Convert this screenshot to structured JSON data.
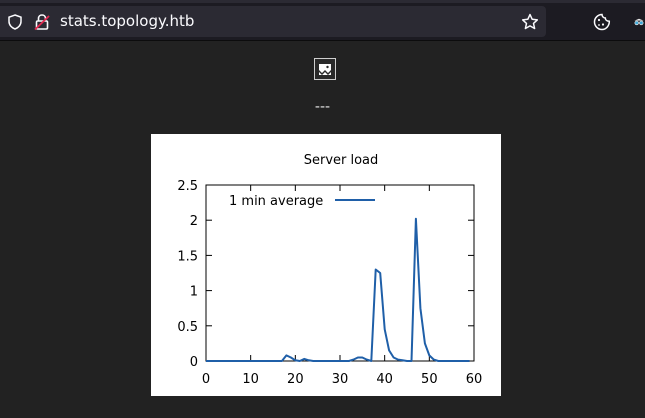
{
  "browser": {
    "url": "stats.topology.htb",
    "icons": {
      "shield": "shield-icon",
      "lock": "lock-insecure-icon",
      "bookmark": "star-icon",
      "extension": "cookie-icon",
      "account": "incognito-glasses-icon"
    }
  },
  "page": {
    "separator": "---",
    "broken_image_icon": "broken-image-icon"
  },
  "colors": {
    "series_line": "#1f5fa8",
    "page_background": "#222222",
    "toolbar_background": "#1c1b22",
    "urlbar_background": "#2b2a33"
  },
  "chart_data": {
    "type": "line",
    "title": "Server load",
    "xlabel": "",
    "ylabel": "",
    "xlim": [
      0,
      60
    ],
    "ylim": [
      0,
      2.5
    ],
    "x_ticks": [
      "0",
      "10",
      "20",
      "30",
      "40",
      "50",
      "60"
    ],
    "y_ticks": [
      "0",
      "0.5",
      "1",
      "1.5",
      "2",
      "2.5"
    ],
    "x_tick_values": [
      0,
      10,
      20,
      30,
      40,
      50,
      60
    ],
    "y_tick_values": [
      0,
      0.5,
      1,
      1.5,
      2,
      2.5
    ],
    "grid": false,
    "legend_position": "top-left",
    "series": [
      {
        "name": "1 min average",
        "x": [
          0,
          2,
          4,
          6,
          8,
          10,
          12,
          14,
          16,
          17,
          18,
          19,
          20,
          21,
          22,
          23,
          24,
          26,
          28,
          30,
          32,
          33,
          34,
          35,
          36,
          37,
          38,
          39,
          40,
          41,
          42,
          43,
          44,
          45,
          46,
          47,
          48,
          49,
          50,
          51,
          52,
          54,
          56,
          58,
          59
        ],
        "y": [
          0,
          0,
          0,
          0,
          0,
          0,
          0,
          0,
          0,
          0,
          0.08,
          0.05,
          0.01,
          0,
          0.03,
          0.01,
          0,
          0,
          0,
          0,
          0,
          0.02,
          0.05,
          0.05,
          0.02,
          0,
          1.3,
          1.25,
          0.45,
          0.15,
          0.05,
          0.02,
          0.01,
          0,
          0,
          2.02,
          0.75,
          0.25,
          0.08,
          0.02,
          0,
          0,
          0,
          0,
          0
        ]
      }
    ]
  }
}
